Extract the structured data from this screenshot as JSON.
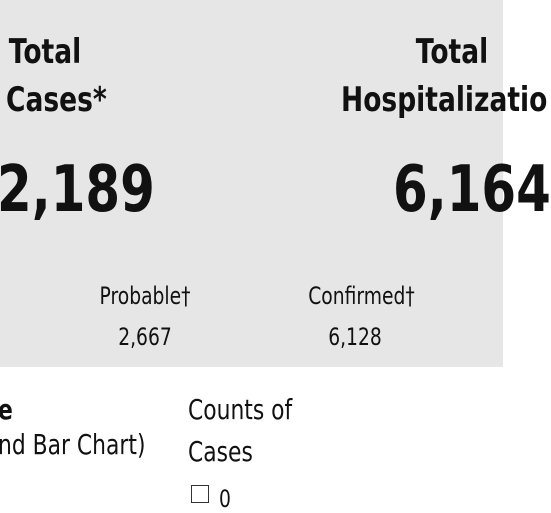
{
  "summary": {
    "cases": {
      "title_line1": "Total",
      "title_line2": "Cases*",
      "value": "2,189"
    },
    "hospitalizations": {
      "title_line1": "Total",
      "title_line2": "Hospitalizatio",
      "value": "6,164"
    },
    "breakdown": [
      {
        "label": "Probable†",
        "value": "2,667"
      },
      {
        "label": "Confirmed†",
        "value": "6,128"
      }
    ]
  },
  "filters": {
    "left_heading_line1": "e",
    "left_heading_line2": "nd Bar Chart)",
    "counts_heading_line1": "Counts of",
    "counts_heading_line2": "Cases",
    "checkbox_label": "0"
  }
}
